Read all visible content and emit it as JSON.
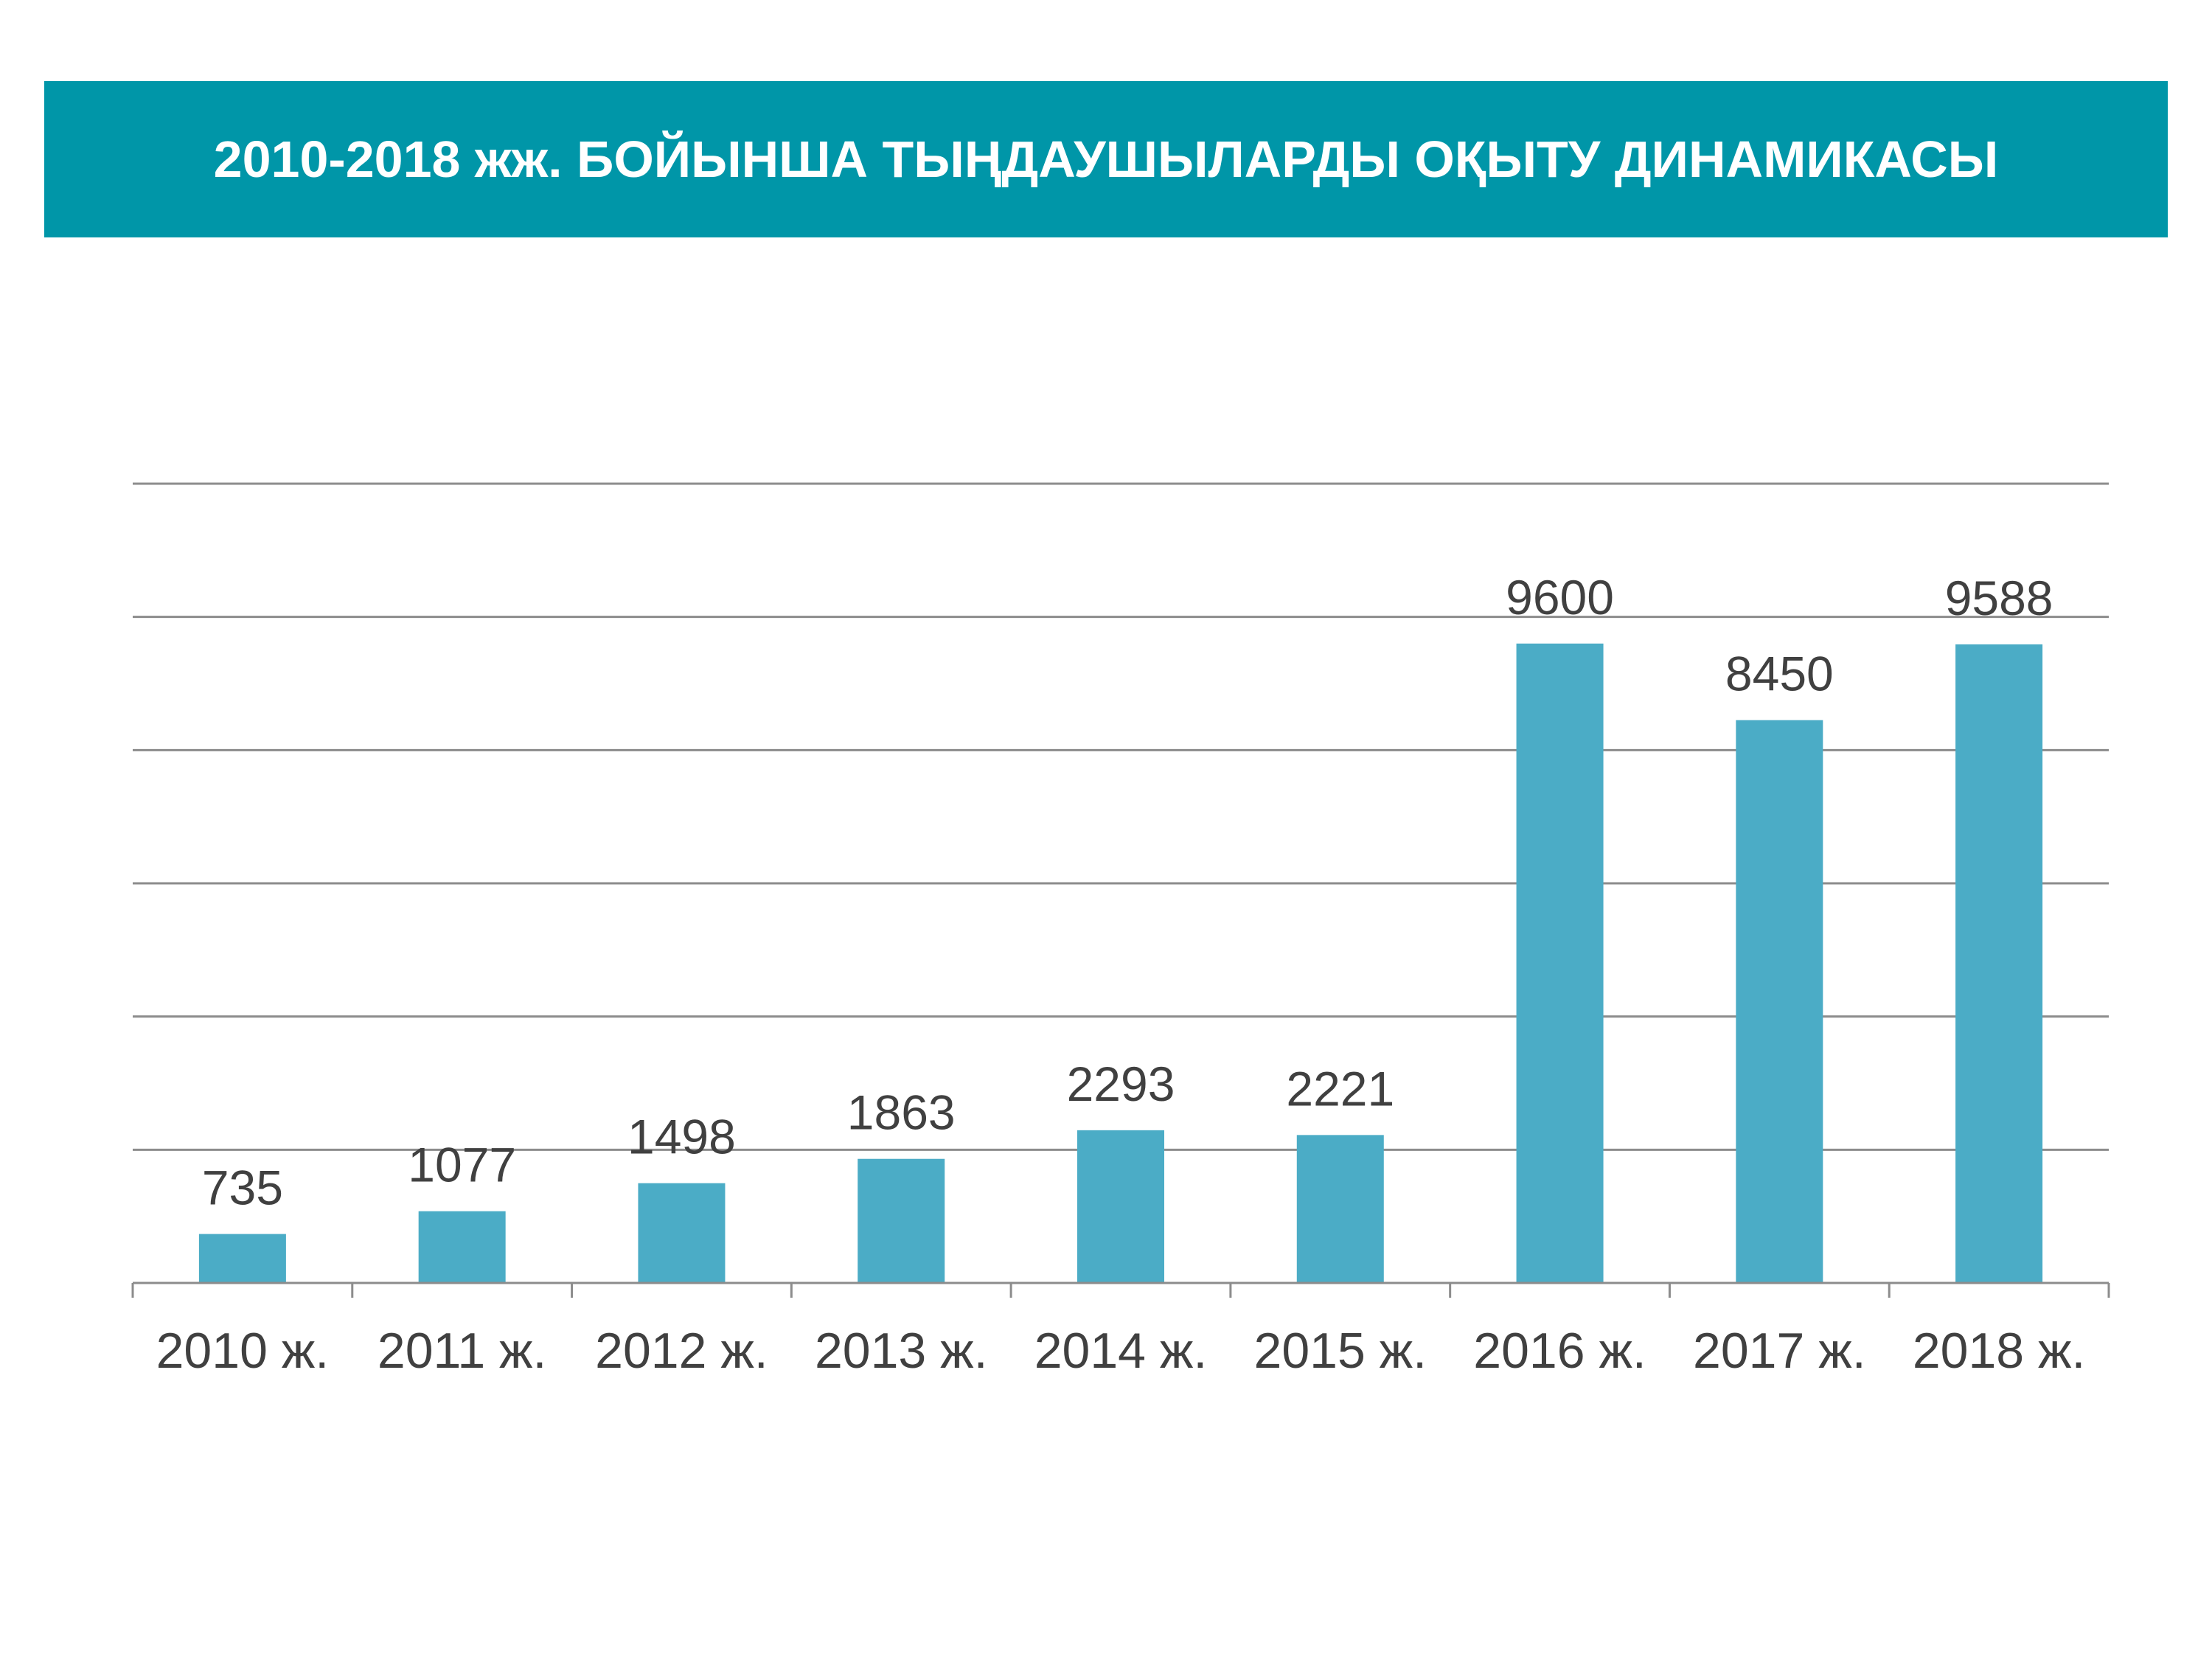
{
  "title": "2010-2018 жж. БОЙЫНША ТЫҢДАУШЫЛАРДЫ ОҚЫТУ ДИНАМИКАСЫ",
  "colors": {
    "banner": "#0096A8",
    "bar": "#4BACC6",
    "gridline": "#8C8C8C",
    "axis": "#8C8C8C",
    "text": "#404040"
  },
  "chart_data": {
    "type": "bar",
    "title": "2010-2018 жж. БОЙЫНША ТЫҢДАУШЫЛАРДЫ ОҚЫТУ ДИНАМИКАСЫ",
    "categories": [
      "2010 ж.",
      "2011 ж.",
      "2012 ж.",
      "2013 ж.",
      "2014 ж.",
      "2015 ж.",
      "2016 ж.",
      "2017 ж.",
      "2018 ж."
    ],
    "series": [
      {
        "values": [
          735,
          1077,
          1498,
          1863,
          2293,
          2221,
          9600,
          8450,
          9588
        ]
      }
    ],
    "data_labels": [
      "735",
      "1077",
      "1498",
      "1863",
      "2293",
      "2221",
      "9600",
      "8450",
      "9588"
    ],
    "ylim": [
      0,
      12000
    ],
    "y_gridlines": [
      2000,
      4000,
      6000,
      8000,
      10000,
      12000
    ],
    "y_tick_labels_shown": false,
    "grid": true,
    "legend": "none",
    "xlabel": "",
    "ylabel": ""
  }
}
